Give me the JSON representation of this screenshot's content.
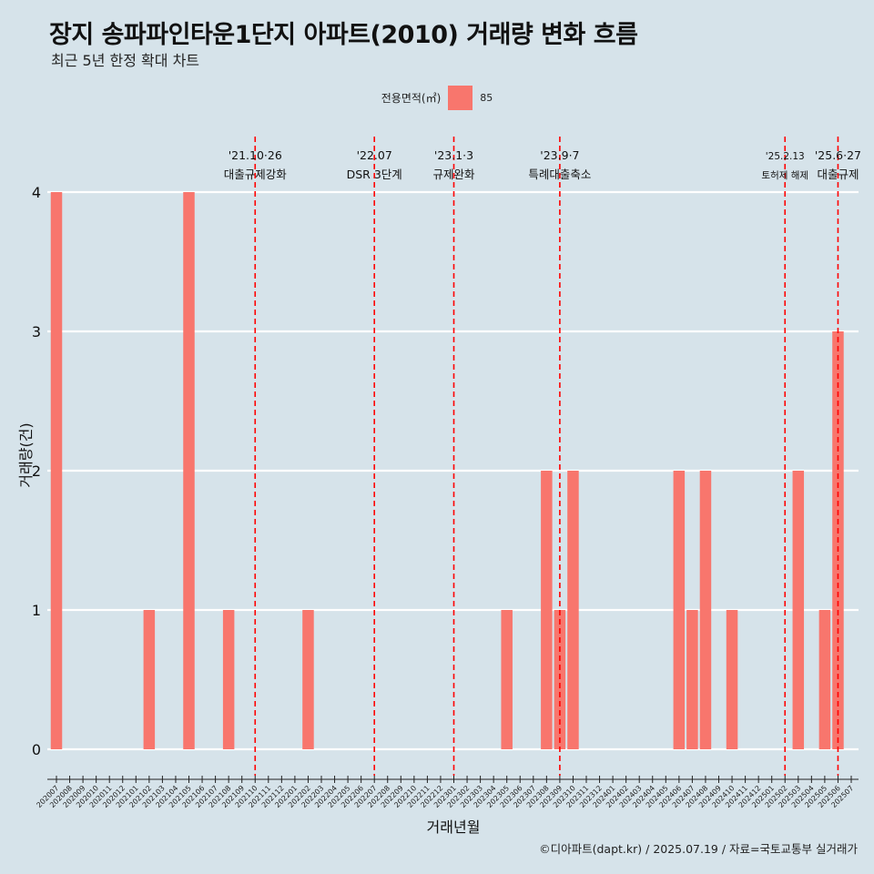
{
  "title": "장지 송파파인타운1단지 아파트(2010) 거래량 변화 흐름",
  "subtitle": "최근 5년 한정 확대 차트",
  "legend": {
    "title": "전용면적(㎡)",
    "items": [
      {
        "label": "85",
        "color": "#f8766d"
      }
    ]
  },
  "caption": "©디아파트(dapt.kr) / 2025.07.19 / 자료=국토교통부 실거래가",
  "chart_data": {
    "type": "bar",
    "xlabel": "거래년월",
    "ylabel": "거래량(건)",
    "ylim": [
      0,
      4
    ],
    "yticks": [
      0,
      1,
      2,
      3,
      4
    ],
    "grid": true,
    "legend_position": "top",
    "bar_color": "#f8766d",
    "categories": [
      "202007",
      "202008",
      "202009",
      "202010",
      "202011",
      "202012",
      "202101",
      "202102",
      "202103",
      "202104",
      "202105",
      "202106",
      "202107",
      "202108",
      "202109",
      "202110",
      "202111",
      "202112",
      "202201",
      "202202",
      "202203",
      "202204",
      "202205",
      "202206",
      "202207",
      "202208",
      "202209",
      "202210",
      "202211",
      "202212",
      "202301",
      "202302",
      "202303",
      "202304",
      "202305",
      "202306",
      "202307",
      "202308",
      "202309",
      "202310",
      "202311",
      "202312",
      "202401",
      "202402",
      "202403",
      "202404",
      "202405",
      "202406",
      "202407",
      "202408",
      "202409",
      "202410",
      "202411",
      "202412",
      "202501",
      "202502",
      "202503",
      "202504",
      "202505",
      "202506",
      "202507"
    ],
    "series": [
      {
        "name": "85",
        "values": [
          4,
          0,
          0,
          0,
          0,
          0,
          0,
          1,
          0,
          0,
          4,
          0,
          0,
          1,
          0,
          0,
          0,
          0,
          0,
          1,
          0,
          0,
          0,
          0,
          0,
          0,
          0,
          0,
          0,
          0,
          0,
          0,
          0,
          0,
          1,
          0,
          0,
          2,
          1,
          2,
          0,
          0,
          0,
          0,
          0,
          0,
          0,
          2,
          1,
          2,
          0,
          1,
          0,
          0,
          0,
          0,
          2,
          0,
          1,
          3,
          0
        ]
      }
    ],
    "events": [
      {
        "month": "202110",
        "date": "'21.10·26",
        "label": "대출규제강화"
      },
      {
        "month": "202207",
        "date": "'22.07",
        "label": "DSR 3단계"
      },
      {
        "month": "202301",
        "date": "'23.1·3",
        "label": "규제완화"
      },
      {
        "month": "202309",
        "date": "'23.9·7",
        "label": "특례대출축소"
      },
      {
        "month": "202502",
        "date": "'25.2.13",
        "label": "토허제 해제"
      },
      {
        "month": "202506",
        "date": "'25.6·27",
        "label": "대출규제"
      }
    ],
    "event_line_color": "#ff0000"
  }
}
